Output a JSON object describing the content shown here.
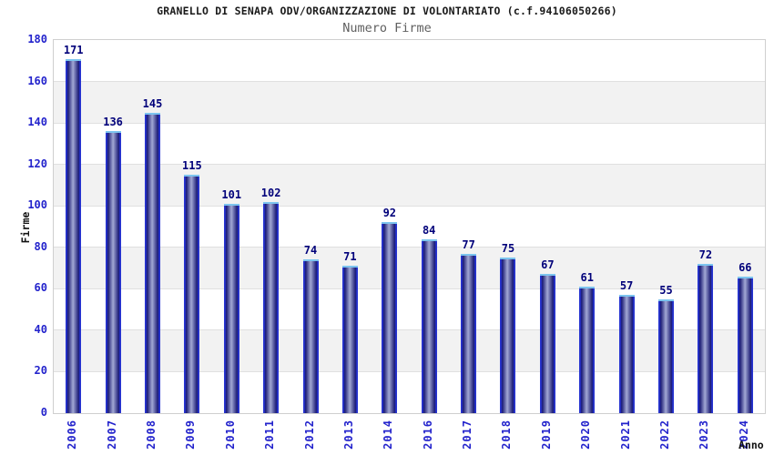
{
  "title": "GRANELLO DI SENAPA ODV/ORGANIZZAZIONE DI VOLONTARIATO (c.f.94106050266)",
  "subtitle": "Numero Firme",
  "chart_data": {
    "type": "bar",
    "title": "GRANELLO DI SENAPA ODV/ORGANIZZAZIONE DI VOLONTARIATO (c.f.94106050266)",
    "subtitle": "Numero Firme",
    "xlabel": "Anno",
    "ylabel": "Firme",
    "categories": [
      "2006",
      "2007",
      "2008",
      "2009",
      "2010",
      "2011",
      "2012",
      "2013",
      "2014",
      "2016",
      "2017",
      "2018",
      "2019",
      "2020",
      "2021",
      "2022",
      "2023",
      "2024"
    ],
    "values": [
      171,
      136,
      145,
      115,
      101,
      102,
      74,
      71,
      92,
      84,
      77,
      75,
      67,
      61,
      57,
      55,
      72,
      66
    ],
    "ylim": [
      0,
      180
    ],
    "yticks": [
      0,
      20,
      40,
      60,
      80,
      100,
      120,
      140,
      160,
      180
    ],
    "grid": true,
    "legend": "none",
    "band_intervals": [
      [
        20,
        40
      ],
      [
        60,
        80
      ],
      [
        100,
        120
      ],
      [
        140,
        160
      ]
    ],
    "colors": {
      "tick_label": "#2323cc",
      "value_label": "#00007a",
      "bar_edge": "#2633d1",
      "bar_dark": "#1b1b74",
      "bar_light": "#a2a8d4",
      "bar_cap": "#7cc4ef",
      "band_fill": "#f2f2f2",
      "gridline": "#e0e0e0",
      "frame": "#cfcfcf"
    }
  }
}
